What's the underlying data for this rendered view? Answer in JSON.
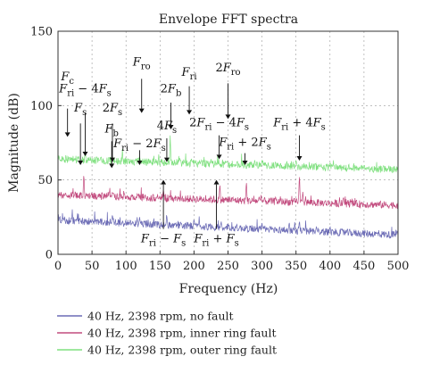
{
  "chart_data": {
    "type": "line",
    "title": "Envelope FFT spectra",
    "xlabel": "Frequency (Hz)",
    "ylabel": "Magnitude (dB)",
    "xlim": [
      0,
      500
    ],
    "ylim": [
      0,
      150
    ],
    "xticks": [
      0,
      50,
      100,
      150,
      200,
      250,
      300,
      350,
      400,
      450,
      500
    ],
    "yticks": [
      0,
      50,
      100,
      150
    ],
    "grid": true,
    "legend_position": "below",
    "series": [
      {
        "name": "40 Hz, 2398 rpm, no fault",
        "color": "#6b6bb5",
        "baseline_start": 23,
        "baseline_end": 13,
        "x": [
          0,
          25,
          40,
          50,
          75,
          80,
          100,
          120,
          150,
          160,
          190,
          200,
          240,
          250,
          300,
          340,
          355,
          380,
          400,
          450,
          500
        ],
        "y": [
          23,
          22,
          25,
          21,
          22,
          27,
          22,
          25,
          22,
          26,
          21,
          24,
          22,
          21,
          20,
          22,
          23,
          19,
          19,
          16,
          13
        ]
      },
      {
        "name": "40 Hz, 2398 rpm, inner ring fault",
        "color": "#c24b7e",
        "baseline_start": 40,
        "baseline_end": 33,
        "x": [
          0,
          20,
          38,
          50,
          80,
          100,
          120,
          155,
          160,
          200,
          238,
          250,
          277,
          300,
          320,
          355,
          360,
          400,
          420,
          450,
          500
        ],
        "y": [
          40,
          42,
          55,
          38,
          42,
          38,
          40,
          44,
          39,
          40,
          48,
          38,
          50,
          38,
          39,
          55,
          42,
          37,
          38,
          36,
          33
        ]
      },
      {
        "name": "40 Hz, 2398 rpm, outer ring fault",
        "color": "#7fe07f",
        "baseline_start": 64,
        "baseline_end": 57,
        "x": [
          0,
          20,
          40,
          55,
          80,
          100,
          120,
          150,
          165,
          200,
          225,
          250,
          280,
          300,
          330,
          350,
          380,
          400,
          430,
          460,
          500
        ],
        "y": [
          64,
          66,
          70,
          63,
          66,
          64,
          66,
          63,
          80,
          63,
          64,
          63,
          62,
          63,
          62,
          64,
          61,
          62,
          60,
          58,
          57
        ]
      }
    ],
    "annotations": [
      {
        "id": "Fc",
        "base": "F",
        "sub": "c",
        "suffix": "",
        "x": 14,
        "text_y": 117,
        "arrow_from": 98,
        "arrow_to": 79
      },
      {
        "id": "Fri-4Fs",
        "base": "F",
        "sub": "ri",
        "suffix": " − 4F",
        "sub2": "s",
        "x": 40,
        "text_y": 109,
        "arrow_from": 95,
        "arrow_to": 66
      },
      {
        "id": "Fs",
        "base": "F",
        "sub": "s",
        "suffix": "",
        "x": 33,
        "text_y": 96,
        "arrow_from": 88,
        "arrow_to": 60
      },
      {
        "id": "2Fs",
        "prefix": "2",
        "base": "F",
        "sub": "s",
        "suffix": "",
        "x": 80,
        "text_y": 96,
        "arrow_from": 88,
        "arrow_to": 62
      },
      {
        "id": "Fb",
        "base": "F",
        "sub": "b",
        "suffix": "",
        "x": 79,
        "text_y": 82,
        "arrow_from": 76,
        "arrow_to": 58
      },
      {
        "id": "Fri-2Fs",
        "base": "F",
        "sub": "ri",
        "suffix": " − 2F",
        "sub2": "s",
        "x": 120,
        "text_y": 72,
        "arrow_from": 70,
        "arrow_to": 60
      },
      {
        "id": "Fro",
        "base": "F",
        "sub": "ro",
        "suffix": "",
        "x": 123,
        "text_y": 127,
        "arrow_from": 118,
        "arrow_to": 95
      },
      {
        "id": "4Fs",
        "prefix": "4",
        "base": "F",
        "sub": "s",
        "suffix": "",
        "x": 160,
        "text_y": 84,
        "arrow_from": 78,
        "arrow_to": 62
      },
      {
        "id": "2Fb",
        "prefix": "2",
        "base": "F",
        "sub": "b",
        "suffix": "",
        "x": 166,
        "text_y": 109,
        "arrow_from": 102,
        "arrow_to": 84
      },
      {
        "id": "Fri",
        "base": "F",
        "sub": "ri",
        "suffix": "",
        "x": 193,
        "text_y": 120,
        "arrow_from": 113,
        "arrow_to": 94
      },
      {
        "id": "2Fro",
        "prefix": "2",
        "base": "F",
        "sub": "ro",
        "suffix": "",
        "x": 250,
        "text_y": 123,
        "arrow_from": 115,
        "arrow_to": 91
      },
      {
        "id": "2Fri-4Fs",
        "prefix": "2",
        "base": "F",
        "sub": "ri",
        "suffix": " − 4F",
        "sub2": "s",
        "x": 237,
        "text_y": 86,
        "arrow_from": 80,
        "arrow_to": 64
      },
      {
        "id": "Fri+2Fs",
        "base": "F",
        "sub": "ri",
        "suffix": " + 2F",
        "sub2": "s",
        "x": 275,
        "text_y": 73,
        "arrow_from": 68,
        "arrow_to": 60
      },
      {
        "id": "Fri+4Fs",
        "base": "F",
        "sub": "ri",
        "suffix": " + 4F",
        "sub2": "s",
        "x": 355,
        "text_y": 86,
        "arrow_from": 80,
        "arrow_to": 63
      },
      {
        "id": "Fri-Fs",
        "base": "F",
        "sub": "ri",
        "suffix": " − F",
        "sub2": "s",
        "x": 155,
        "text_y": 8,
        "arrow_from": 17,
        "arrow_to": 50
      },
      {
        "id": "Fri+Fs",
        "base": "F",
        "sub": "ri",
        "suffix": " + F",
        "sub2": "s",
        "x": 233,
        "text_y": 8,
        "arrow_from": 17,
        "arrow_to": 50
      }
    ]
  }
}
